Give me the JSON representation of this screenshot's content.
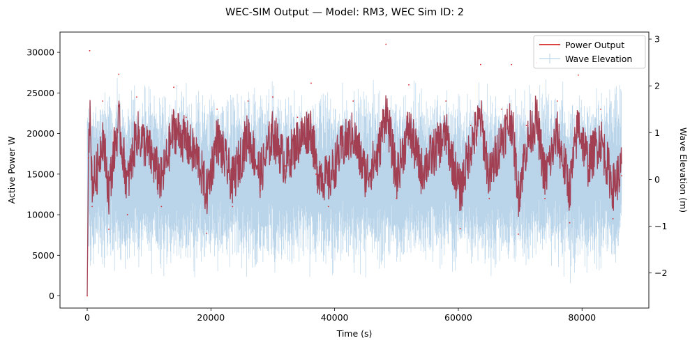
{
  "chart_data": {
    "type": "line",
    "title": "WEC-SIM Output — Model: RM3, WEC Sim ID: 2",
    "xlabel": "Time (s)",
    "ylabel": "Active Power W",
    "y2label": "Wave Elevation (m)",
    "xlim": [
      -4400,
      90800
    ],
    "ylim": [
      -1500,
      32500
    ],
    "y2lim": [
      -2.75,
      3.15
    ],
    "xticks": [
      0,
      20000,
      40000,
      60000,
      80000
    ],
    "yticks": [
      0,
      5000,
      10000,
      15000,
      20000,
      25000,
      30000
    ],
    "y2ticks": [
      -2,
      -1,
      0,
      1,
      2,
      3
    ],
    "y2tick_labels": [
      "−2",
      "−1",
      "0",
      "1",
      "2",
      "3"
    ],
    "grid": false,
    "legend_position": "top-right",
    "series": [
      {
        "name": "Power Output",
        "axis": "left",
        "color": "#d62728",
        "rendered_color": "#a23f52",
        "x": [
          0,
          200,
          400,
          800,
          1500,
          2500,
          3500,
          4300,
          5100,
          6500,
          8000,
          10000,
          12000,
          14000,
          16000,
          18000,
          19300,
          21000,
          23500,
          26000,
          28000,
          30000,
          32000,
          34000,
          36200,
          37000,
          39000,
          41000,
          43000,
          45000,
          47000,
          48300,
          50000,
          52000,
          54000,
          56000,
          58000,
          60300,
          62000,
          63600,
          65000,
          67000,
          68600,
          69700,
          71000,
          72600,
          74000,
          76000,
          78000,
          79400,
          81000,
          83000,
          85000,
          86400
        ],
        "values": [
          0,
          17000,
          30200,
          11000,
          13000,
          24000,
          8200,
          19000,
          27300,
          10000,
          24500,
          19500,
          11000,
          25700,
          22000,
          17000,
          7700,
          23000,
          11000,
          24000,
          13000,
          24500,
          16000,
          22000,
          26200,
          15000,
          11000,
          20000,
          24000,
          13000,
          18000,
          31000,
          12000,
          26000,
          14000,
          19000,
          24000,
          8300,
          21000,
          28500,
          12000,
          23000,
          28500,
          7600,
          21000,
          28700,
          12000,
          24000,
          9000,
          27200,
          16000,
          23000,
          9500,
          14800
        ]
      },
      {
        "name": "Wave Elevation",
        "axis": "right",
        "color": "#1f77b4",
        "rendered_color": "#bad5ea",
        "x": [
          0,
          86400
        ],
        "values_range": [
          -2.6,
          2.7
        ],
        "note_samples": "dense oscillating signal"
      }
    ]
  }
}
